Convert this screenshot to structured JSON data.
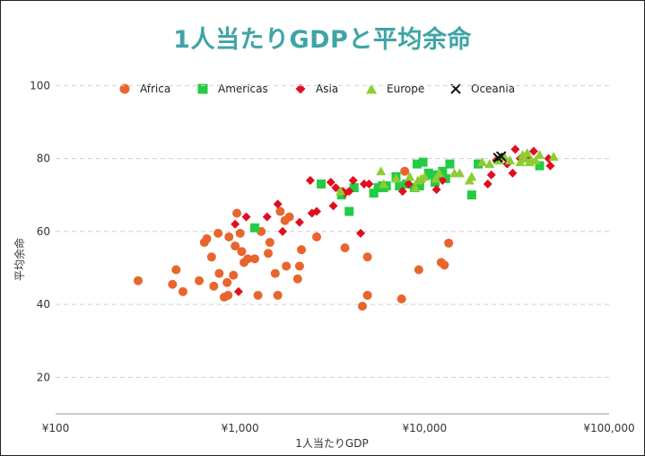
{
  "chart_data": {
    "type": "scatter",
    "title": "1人当たりGDPと平均余命",
    "xlabel": "1人当たりGDP",
    "ylabel": "平均余命",
    "x_scale": "log",
    "xlim": [
      100,
      100000
    ],
    "ylim": [
      10,
      105
    ],
    "x_ticks": [
      100,
      1000,
      10000,
      100000
    ],
    "x_tick_labels": [
      "¥100",
      "¥1,000",
      "¥10,000",
      "¥100,000"
    ],
    "y_ticks": [
      20,
      40,
      60,
      80,
      100
    ],
    "y_tick_labels": [
      "20",
      "40",
      "60",
      "80",
      "100"
    ],
    "grid": "horizontal dashed",
    "legend_position": "top",
    "series": [
      {
        "name": "Africa",
        "marker": "circle",
        "color": "#e8652d",
        "points": [
          [
            280,
            46.5
          ],
          [
            430,
            45.5
          ],
          [
            450,
            49.5
          ],
          [
            490,
            43.5
          ],
          [
            600,
            46.5
          ],
          [
            640,
            57
          ],
          [
            660,
            58
          ],
          [
            700,
            53
          ],
          [
            720,
            45
          ],
          [
            760,
            59.5
          ],
          [
            770,
            48.5
          ],
          [
            820,
            42
          ],
          [
            850,
            46
          ],
          [
            860,
            42.5
          ],
          [
            870,
            58.5
          ],
          [
            920,
            48
          ],
          [
            940,
            56
          ],
          [
            960,
            65
          ],
          [
            1000,
            59.5
          ],
          [
            1020,
            54.5
          ],
          [
            1050,
            51.5
          ],
          [
            1100,
            52.5
          ],
          [
            1200,
            52.5
          ],
          [
            1250,
            42.5
          ],
          [
            1300,
            60
          ],
          [
            1420,
            54
          ],
          [
            1450,
            57
          ],
          [
            1550,
            48.5
          ],
          [
            1600,
            42.5
          ],
          [
            1650,
            65.5
          ],
          [
            1750,
            63
          ],
          [
            1780,
            50.5
          ],
          [
            1850,
            64
          ],
          [
            2050,
            47
          ],
          [
            2100,
            50.5
          ],
          [
            2150,
            55
          ],
          [
            2600,
            58.5
          ],
          [
            3700,
            55.5
          ],
          [
            4600,
            39.5
          ],
          [
            4900,
            53
          ],
          [
            4900,
            42.5
          ],
          [
            7500,
            41.5
          ],
          [
            7800,
            76.5
          ],
          [
            9300,
            49.5
          ],
          [
            12300,
            51.5
          ],
          [
            12800,
            50.8
          ],
          [
            13500,
            56.8
          ]
        ]
      },
      {
        "name": "Americas",
        "marker": "square",
        "color": "#22cc44",
        "points": [
          [
            1200,
            61
          ],
          [
            2750,
            73
          ],
          [
            3550,
            70
          ],
          [
            3900,
            65.5
          ],
          [
            4150,
            72
          ],
          [
            5300,
            70.5
          ],
          [
            5600,
            72
          ],
          [
            5900,
            72.5
          ],
          [
            6000,
            72
          ],
          [
            6200,
            72.5
          ],
          [
            7000,
            75
          ],
          [
            7300,
            72.5
          ],
          [
            8000,
            73
          ],
          [
            8800,
            72
          ],
          [
            9100,
            78.5
          ],
          [
            9400,
            72.5
          ],
          [
            9800,
            79
          ],
          [
            10500,
            76
          ],
          [
            10800,
            75.5
          ],
          [
            11400,
            73.5
          ],
          [
            12000,
            75.5
          ],
          [
            12500,
            76.5
          ],
          [
            13000,
            74.5
          ],
          [
            13700,
            78.5
          ],
          [
            18000,
            70
          ],
          [
            19500,
            78.5
          ],
          [
            42000,
            78
          ]
        ]
      },
      {
        "name": "Asia",
        "marker": "diamond",
        "color": "#e00e20",
        "points": [
          [
            940,
            62
          ],
          [
            980,
            43.5
          ],
          [
            1080,
            64
          ],
          [
            1400,
            64
          ],
          [
            1600,
            67.5
          ],
          [
            1700,
            60
          ],
          [
            2100,
            62.5
          ],
          [
            2400,
            74
          ],
          [
            2450,
            65
          ],
          [
            2600,
            65.5
          ],
          [
            3100,
            73.5
          ],
          [
            3200,
            67
          ],
          [
            3300,
            72
          ],
          [
            3600,
            71
          ],
          [
            3700,
            70.5
          ],
          [
            3900,
            71
          ],
          [
            4100,
            74
          ],
          [
            4500,
            59.5
          ],
          [
            4700,
            73
          ],
          [
            5000,
            73
          ],
          [
            7600,
            71
          ],
          [
            8200,
            73
          ],
          [
            11600,
            71.5
          ],
          [
            12500,
            74
          ],
          [
            22000,
            73
          ],
          [
            23000,
            75.5
          ],
          [
            24500,
            79.5
          ],
          [
            28000,
            78.5
          ],
          [
            30000,
            76
          ],
          [
            31000,
            82.5
          ],
          [
            33000,
            80
          ],
          [
            36000,
            80
          ],
          [
            39000,
            82
          ],
          [
            47000,
            80
          ],
          [
            48000,
            78
          ]
        ]
      },
      {
        "name": "Europe",
        "marker": "triangle",
        "color": "#8dcc33",
        "points": [
          [
            3500,
            71
          ],
          [
            5800,
            76.5
          ],
          [
            6000,
            73
          ],
          [
            7000,
            74.5
          ],
          [
            8300,
            75
          ],
          [
            8900,
            72
          ],
          [
            9200,
            74
          ],
          [
            9600,
            74.5
          ],
          [
            10000,
            75
          ],
          [
            11500,
            74.5
          ],
          [
            12000,
            76
          ],
          [
            14500,
            76
          ],
          [
            15500,
            76
          ],
          [
            17500,
            74
          ],
          [
            18000,
            75
          ],
          [
            20500,
            79
          ],
          [
            22500,
            78.5
          ],
          [
            25000,
            79.5
          ],
          [
            27000,
            80.5
          ],
          [
            29000,
            79.5
          ],
          [
            33000,
            79
          ],
          [
            34000,
            81
          ],
          [
            35000,
            80
          ],
          [
            36000,
            81.5
          ],
          [
            37000,
            79
          ],
          [
            38000,
            79.5
          ],
          [
            40000,
            79.5
          ],
          [
            42000,
            81
          ],
          [
            50000,
            80.5
          ]
        ]
      },
      {
        "name": "Oceania",
        "marker": "cross",
        "color": "#111111",
        "points": [
          [
            25000,
            80.2
          ],
          [
            26000,
            80.6
          ]
        ]
      }
    ]
  }
}
